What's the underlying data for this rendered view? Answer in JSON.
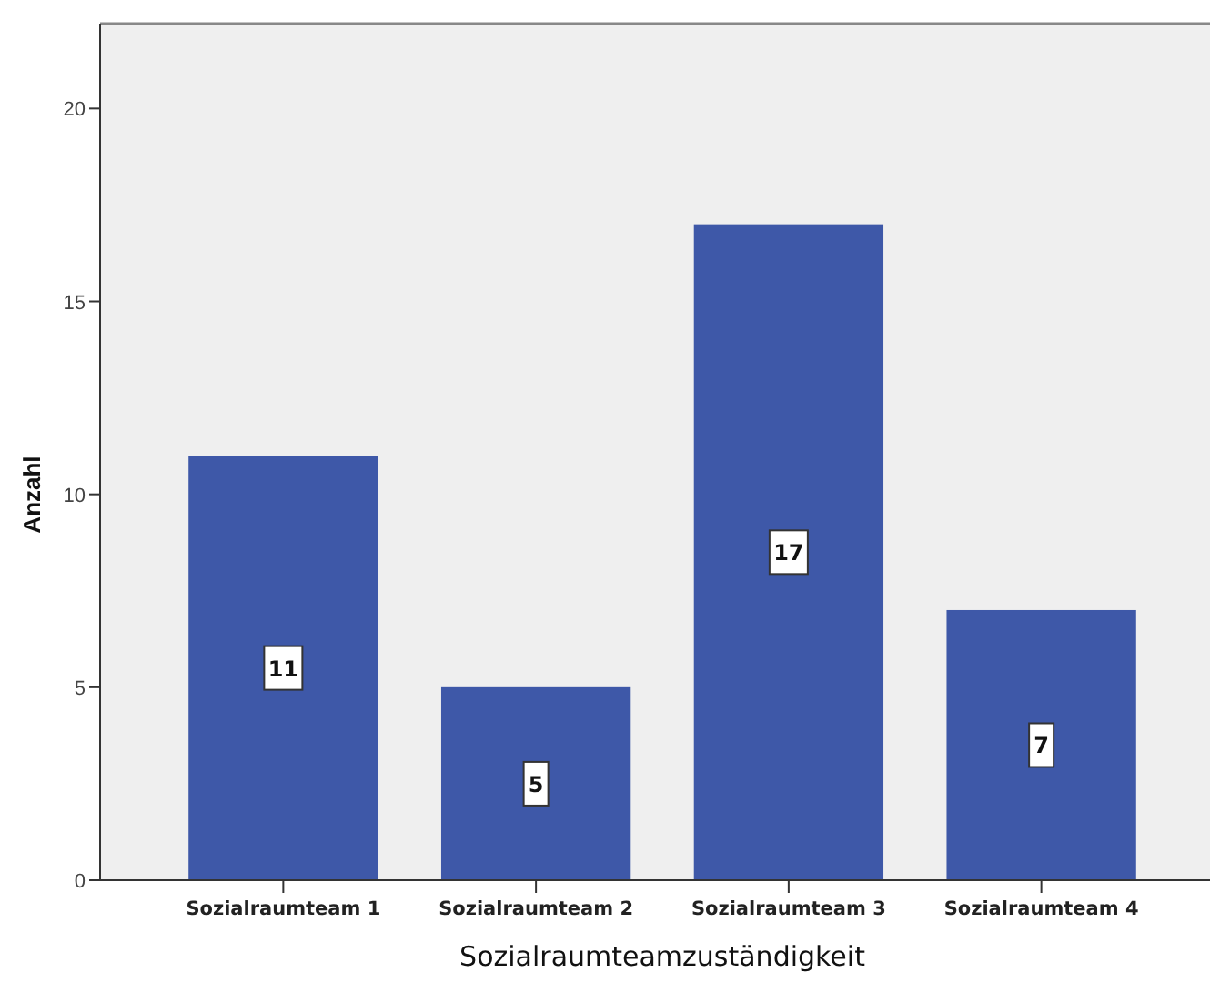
{
  "chart_data": {
    "type": "bar",
    "xlabel": "Sozialraumteamzuständigkeit",
    "ylabel": "Anzahl",
    "categories": [
      "Sozialraumteam 1",
      "Sozialraumteam 2",
      "Sozialraumteam 3",
      "Sozialraumteam 4"
    ],
    "values": [
      11,
      5,
      17,
      7
    ],
    "color": "#3e58a8",
    "ylim": [
      0,
      22.2
    ],
    "yticks": [
      0,
      5,
      10,
      15,
      20
    ],
    "data_labels": true
  }
}
